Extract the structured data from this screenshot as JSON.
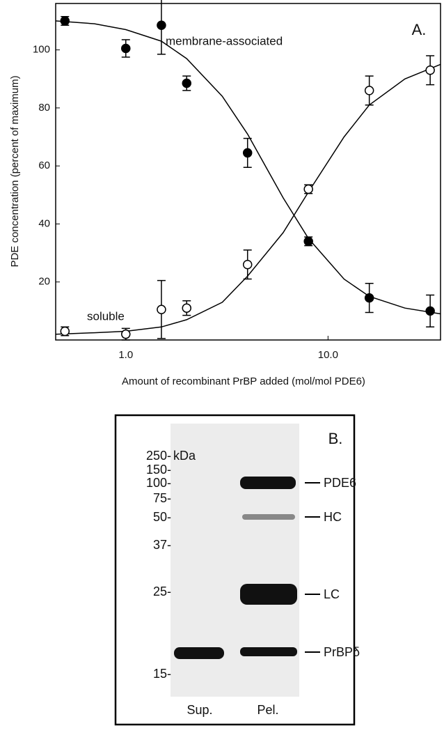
{
  "chart_data": {
    "type": "scatter",
    "xlabel": "Amount of recombinant PrBP added (mol/mol PDE6)",
    "ylabel": "PDE concentration (percent of maximum)",
    "panel_label": "A.",
    "annotations": [
      "membrane-associated",
      "soluble"
    ],
    "log_x": true,
    "xlim": [
      0.45,
      36
    ],
    "xticks": [
      {
        "value": 1,
        "label": "1.0"
      },
      {
        "value": 10,
        "label": "10.0"
      }
    ],
    "ylim": [
      0,
      116
    ],
    "yticks": [
      20,
      40,
      60,
      80,
      100
    ],
    "x": [
      0.5,
      1,
      1.5,
      2,
      4,
      8,
      16,
      32
    ],
    "series": [
      {
        "name": "membrane-associated",
        "color": "#000000",
        "filled": true,
        "values": [
          110,
          100.5,
          108.5,
          88.5,
          64.5,
          34,
          14.5,
          10
        ],
        "errors": [
          1.5,
          3,
          10,
          2.5,
          5,
          1.5,
          5,
          5.5
        ]
      },
      {
        "name": "soluble",
        "color": "#000000",
        "filled": false,
        "values": [
          3,
          2,
          10.5,
          11,
          26,
          52,
          86,
          93
        ],
        "errors": [
          1.5,
          2,
          10,
          2.5,
          5,
          1.5,
          5,
          5
        ]
      }
    ],
    "fits": {
      "x": [
        0.45,
        0.7,
        1,
        1.5,
        2,
        3,
        4,
        6,
        8,
        12,
        16,
        24,
        36
      ],
      "series": [
        {
          "values": [
            110,
            109,
            107,
            103,
            97,
            84,
            71,
            49,
            35,
            21,
            15,
            11,
            9
          ]
        },
        {
          "values": [
            2,
            2.5,
            3,
            4.5,
            7,
            13,
            22,
            37,
            51,
            70,
            81,
            90,
            95
          ]
        }
      ]
    }
  },
  "gel": {
    "label": "B.",
    "kda": "kDa",
    "markers": [
      "250-",
      "150-",
      "100-",
      "75-",
      "50-",
      "37-",
      "25-",
      "15-"
    ],
    "bands": [
      "PDE6",
      "HC",
      "LC",
      "PrBPδ"
    ],
    "lanes": [
      "Sup.",
      "Pel."
    ]
  }
}
